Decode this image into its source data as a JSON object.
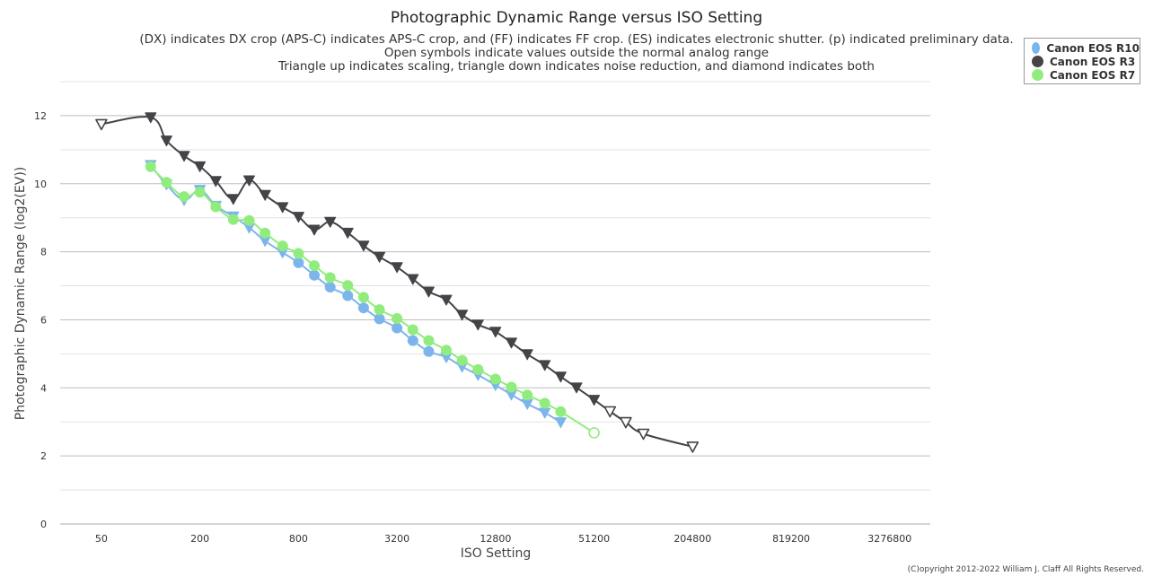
{
  "chart_data": {
    "type": "line",
    "title": "Photographic Dynamic Range versus ISO Setting",
    "subtitle_lines": [
      "(DX) indicates DX crop (APS-C) indicates APS-C crop, and (FF) indicates FF crop. (ES) indicates electronic shutter. (p) indicated preliminary data.",
      "Open symbols indicate values outside the normal analog range",
      "Triangle up indicates scaling, triangle down indicates noise reduction, and diamond indicates both"
    ],
    "xlabel": "ISO Setting",
    "ylabel": "Photographic Dynamic Range (log2(EV))",
    "x_scale": "log2",
    "x_ticks": [
      50,
      200,
      800,
      3200,
      12800,
      51200,
      204800,
      819200,
      3276800
    ],
    "x_tick_labels": [
      "50",
      "200",
      "800",
      "3200",
      "12800",
      "51200",
      "204800",
      "819200",
      "3276800"
    ],
    "y_ticks": [
      0,
      2,
      4,
      6,
      8,
      10,
      12
    ],
    "y_tick_labels": [
      "0",
      "2",
      "4",
      "6",
      "8",
      "10",
      "12"
    ],
    "xlim": [
      28,
      5800000
    ],
    "ylim": [
      0,
      13
    ],
    "grid": true,
    "legend_position": "top-right",
    "copyright": "(C)opyright 2012-2022 William J. Claff All Rights Reserved.",
    "series": [
      {
        "name": "Canon EOS R10",
        "color": "#7cb5ec",
        "points": [
          {
            "x": 100,
            "y": 10.55,
            "m": "tri-down",
            "f": true
          },
          {
            "x": 125,
            "y": 9.98,
            "m": "tri-down",
            "f": true
          },
          {
            "x": 160,
            "y": 9.52,
            "m": "tri-down",
            "f": true
          },
          {
            "x": 200,
            "y": 9.82,
            "m": "tri-down",
            "f": true
          },
          {
            "x": 250,
            "y": 9.35,
            "m": "tri-down",
            "f": true
          },
          {
            "x": 320,
            "y": 9.04,
            "m": "tri-down",
            "f": true
          },
          {
            "x": 400,
            "y": 8.71,
            "m": "tri-down",
            "f": true
          },
          {
            "x": 500,
            "y": 8.32,
            "m": "tri-down",
            "f": true
          },
          {
            "x": 640,
            "y": 7.98,
            "m": "tri-down",
            "f": true
          },
          {
            "x": 800,
            "y": 7.68,
            "m": "circle",
            "f": true
          },
          {
            "x": 1000,
            "y": 7.31,
            "m": "circle",
            "f": true
          },
          {
            "x": 1250,
            "y": 6.96,
            "m": "circle",
            "f": true
          },
          {
            "x": 1600,
            "y": 6.71,
            "m": "circle",
            "f": true
          },
          {
            "x": 2000,
            "y": 6.35,
            "m": "circle",
            "f": true
          },
          {
            "x": 2500,
            "y": 6.03,
            "m": "circle",
            "f": true
          },
          {
            "x": 3200,
            "y": 5.76,
            "m": "circle",
            "f": true
          },
          {
            "x": 4000,
            "y": 5.39,
            "m": "circle",
            "f": true
          },
          {
            "x": 5000,
            "y": 5.07,
            "m": "circle",
            "f": true
          },
          {
            "x": 6400,
            "y": 4.9,
            "m": "tri-down",
            "f": true
          },
          {
            "x": 8000,
            "y": 4.62,
            "m": "tri-down",
            "f": true
          },
          {
            "x": 10000,
            "y": 4.38,
            "m": "tri-down",
            "f": true
          },
          {
            "x": 12800,
            "y": 4.08,
            "m": "tri-down",
            "f": true
          },
          {
            "x": 16000,
            "y": 3.8,
            "m": "tri-down",
            "f": true
          },
          {
            "x": 20000,
            "y": 3.53,
            "m": "tri-down",
            "f": true
          },
          {
            "x": 25600,
            "y": 3.27,
            "m": "tri-down",
            "f": true
          },
          {
            "x": 32000,
            "y": 2.99,
            "m": "tri-down",
            "f": true
          }
        ]
      },
      {
        "name": "Canon EOS R3",
        "color": "#434348",
        "points": [
          {
            "x": 50,
            "y": 11.75,
            "m": "tri-down",
            "f": false
          },
          {
            "x": 100,
            "y": 11.95,
            "m": "tri-down",
            "f": true
          },
          {
            "x": 125,
            "y": 11.27,
            "m": "tri-down",
            "f": true
          },
          {
            "x": 160,
            "y": 10.82,
            "m": "tri-down",
            "f": true
          },
          {
            "x": 200,
            "y": 10.51,
            "m": "tri-down",
            "f": true
          },
          {
            "x": 250,
            "y": 10.08,
            "m": "tri-down",
            "f": true
          },
          {
            "x": 320,
            "y": 9.55,
            "m": "tri-down",
            "f": true
          },
          {
            "x": 400,
            "y": 10.1,
            "m": "tri-down",
            "f": true
          },
          {
            "x": 500,
            "y": 9.67,
            "m": "tri-down",
            "f": true
          },
          {
            "x": 640,
            "y": 9.31,
            "m": "tri-down",
            "f": true
          },
          {
            "x": 800,
            "y": 9.03,
            "m": "tri-down",
            "f": true
          },
          {
            "x": 1000,
            "y": 8.65,
            "m": "tri-down",
            "f": true
          },
          {
            "x": 1250,
            "y": 8.88,
            "m": "tri-down",
            "f": true
          },
          {
            "x": 1600,
            "y": 8.56,
            "m": "tri-down",
            "f": true
          },
          {
            "x": 2000,
            "y": 8.18,
            "m": "tri-down",
            "f": true
          },
          {
            "x": 2500,
            "y": 7.85,
            "m": "tri-down",
            "f": true
          },
          {
            "x": 3200,
            "y": 7.55,
            "m": "tri-down",
            "f": true
          },
          {
            "x": 4000,
            "y": 7.2,
            "m": "tri-down",
            "f": true
          },
          {
            "x": 5000,
            "y": 6.83,
            "m": "tri-down",
            "f": true
          },
          {
            "x": 6400,
            "y": 6.59,
            "m": "tri-down",
            "f": true
          },
          {
            "x": 8000,
            "y": 6.15,
            "m": "tri-down",
            "f": true
          },
          {
            "x": 10000,
            "y": 5.86,
            "m": "tri-down",
            "f": true
          },
          {
            "x": 12800,
            "y": 5.65,
            "m": "tri-down",
            "f": true
          },
          {
            "x": 16000,
            "y": 5.33,
            "m": "tri-down",
            "f": true
          },
          {
            "x": 20000,
            "y": 4.99,
            "m": "tri-down",
            "f": true
          },
          {
            "x": 25600,
            "y": 4.67,
            "m": "tri-down",
            "f": true
          },
          {
            "x": 32000,
            "y": 4.33,
            "m": "tri-down",
            "f": true
          },
          {
            "x": 40000,
            "y": 4.01,
            "m": "tri-down",
            "f": true
          },
          {
            "x": 51200,
            "y": 3.65,
            "m": "tri-down",
            "f": true
          },
          {
            "x": 64000,
            "y": 3.31,
            "m": "tri-down",
            "f": false
          },
          {
            "x": 80000,
            "y": 2.99,
            "m": "tri-down",
            "f": false
          },
          {
            "x": 102400,
            "y": 2.65,
            "m": "tri-down",
            "f": false
          },
          {
            "x": 204800,
            "y": 2.27,
            "m": "tri-down",
            "f": false
          }
        ]
      },
      {
        "name": "Canon EOS R7",
        "color": "#90ed7d",
        "points": [
          {
            "x": 100,
            "y": 10.5,
            "m": "circle",
            "f": true
          },
          {
            "x": 125,
            "y": 10.04,
            "m": "circle",
            "f": true
          },
          {
            "x": 160,
            "y": 9.62,
            "m": "circle",
            "f": true
          },
          {
            "x": 200,
            "y": 9.75,
            "m": "circle",
            "f": true
          },
          {
            "x": 250,
            "y": 9.32,
            "m": "circle",
            "f": true
          },
          {
            "x": 320,
            "y": 8.95,
            "m": "circle",
            "f": true
          },
          {
            "x": 400,
            "y": 8.92,
            "m": "circle",
            "f": true
          },
          {
            "x": 500,
            "y": 8.55,
            "m": "circle",
            "f": true
          },
          {
            "x": 640,
            "y": 8.17,
            "m": "circle",
            "f": true
          },
          {
            "x": 800,
            "y": 7.95,
            "m": "circle",
            "f": true
          },
          {
            "x": 1000,
            "y": 7.59,
            "m": "circle",
            "f": true
          },
          {
            "x": 1250,
            "y": 7.24,
            "m": "circle",
            "f": true
          },
          {
            "x": 1600,
            "y": 7.01,
            "m": "circle",
            "f": true
          },
          {
            "x": 2000,
            "y": 6.66,
            "m": "circle",
            "f": true
          },
          {
            "x": 2500,
            "y": 6.3,
            "m": "circle",
            "f": true
          },
          {
            "x": 3200,
            "y": 6.04,
            "m": "circle",
            "f": true
          },
          {
            "x": 4000,
            "y": 5.71,
            "m": "circle",
            "f": true
          },
          {
            "x": 5000,
            "y": 5.39,
            "m": "circle",
            "f": true
          },
          {
            "x": 6400,
            "y": 5.11,
            "m": "circle",
            "f": true
          },
          {
            "x": 8000,
            "y": 4.81,
            "m": "circle",
            "f": true
          },
          {
            "x": 10000,
            "y": 4.54,
            "m": "circle",
            "f": true
          },
          {
            "x": 12800,
            "y": 4.26,
            "m": "circle",
            "f": true
          },
          {
            "x": 16000,
            "y": 4.02,
            "m": "circle",
            "f": true
          },
          {
            "x": 20000,
            "y": 3.79,
            "m": "circle",
            "f": true
          },
          {
            "x": 25600,
            "y": 3.55,
            "m": "circle",
            "f": true
          },
          {
            "x": 32000,
            "y": 3.3,
            "m": "circle",
            "f": true
          },
          {
            "x": 51200,
            "y": 2.68,
            "m": "circle",
            "f": false
          }
        ]
      }
    ]
  }
}
